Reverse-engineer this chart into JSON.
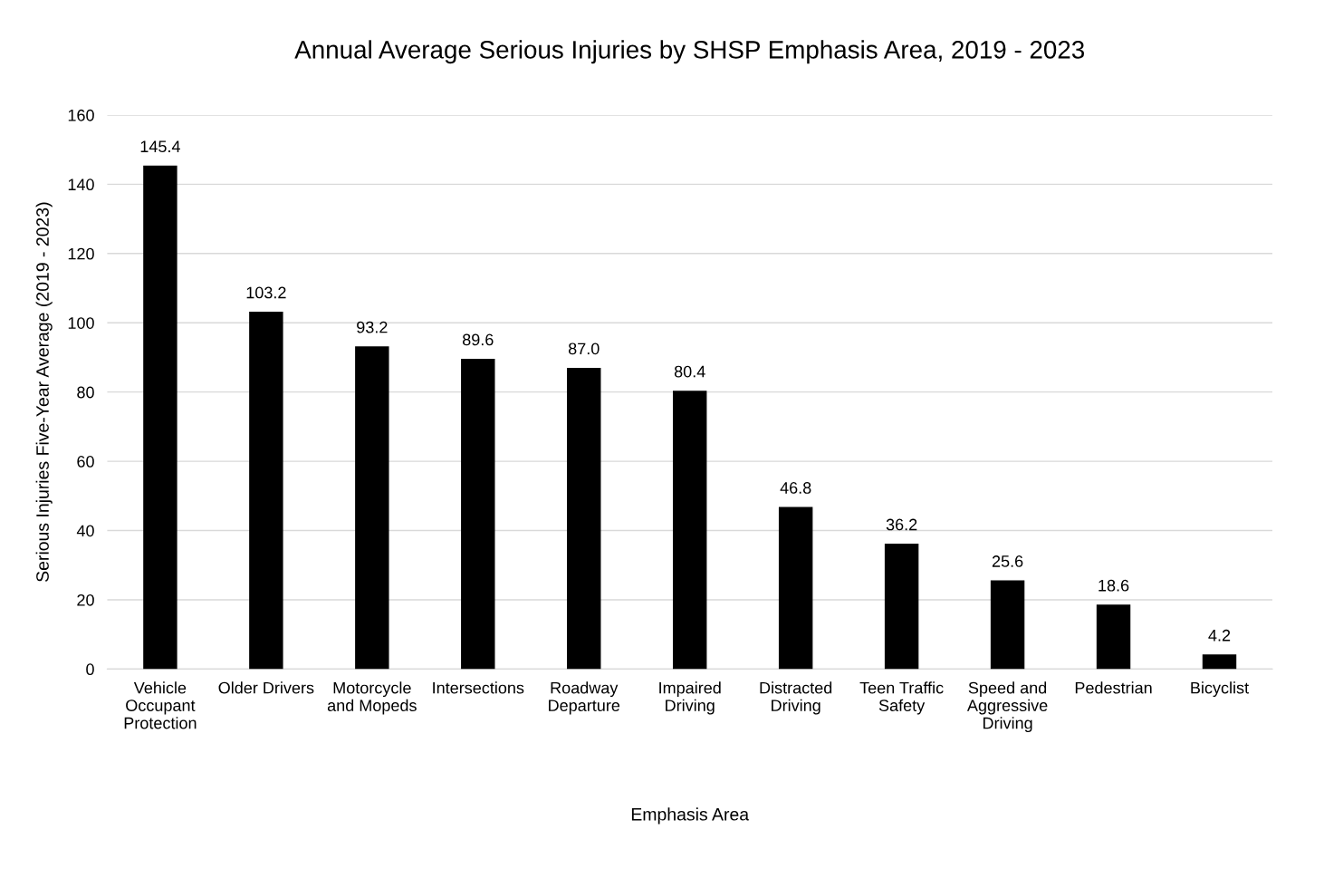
{
  "chart_data": {
    "type": "bar",
    "title": "Annual Average Serious Injuries by SHSP Emphasis Area, 2019 - 2023",
    "xlabel": "Emphasis Area",
    "ylabel": "Serious Injuries Five-Year Average (2019 - 2023)",
    "categories": [
      "Vehicle\nOccupant\nProtection",
      "Older Drivers",
      "Motorcycle\nand Mopeds",
      "Intersections",
      "Roadway\nDeparture",
      "Impaired\nDriving",
      "Distracted\nDriving",
      "Teen Traffic\nSafety",
      "Speed and\nAggressive\nDriving",
      "Pedestrian",
      "Bicyclist"
    ],
    "values": [
      145.4,
      103.2,
      93.2,
      89.6,
      87.0,
      80.4,
      46.8,
      36.2,
      25.6,
      18.6,
      4.2
    ],
    "value_labels": [
      "145.4",
      "103.2",
      "93.2",
      "89.6",
      "87.0",
      "80.4",
      "46.8",
      "36.2",
      "25.6",
      "18.6",
      "4.2"
    ],
    "color": "#000000",
    "ylim": [
      0,
      160
    ],
    "yticks": [
      0,
      20,
      40,
      60,
      80,
      100,
      120,
      140,
      160
    ],
    "grid": "y",
    "legend": false
  }
}
